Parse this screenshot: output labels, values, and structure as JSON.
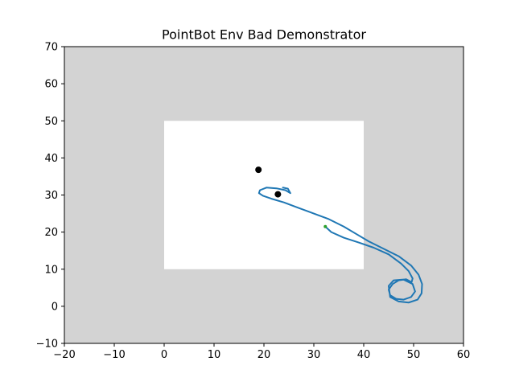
{
  "chart_data": {
    "type": "line",
    "title": "PointBot Env Bad Demonstrator",
    "xlabel": "",
    "ylabel": "",
    "xlim": [
      -20,
      60
    ],
    "ylim": [
      -10,
      70
    ],
    "xticks": [
      -20,
      -10,
      0,
      10,
      20,
      30,
      40,
      50,
      60
    ],
    "yticks": [
      -10,
      0,
      10,
      20,
      30,
      40,
      50,
      60,
      70
    ],
    "grid": false,
    "colors": {
      "background_region": "#d3d3d3",
      "free_region": "#ffffff",
      "trajectory": "#1f77b4",
      "start_point": "#2ca02c",
      "goal_points": "#000000"
    },
    "free_region_rect": {
      "x0": 0,
      "x1": 40,
      "y0": 10,
      "y1": 50
    },
    "start_point": {
      "x": 32.3,
      "y": 21.5
    },
    "goal_points": [
      {
        "x": 18.9,
        "y": 36.8
      },
      {
        "x": 22.8,
        "y": 30.2
      }
    ],
    "series": [
      {
        "x": [
          32.3,
          33.5,
          36.0,
          39.0,
          42.0,
          45.0,
          47.5,
          49.0,
          49.8,
          49.6,
          48.5,
          47.0,
          45.8,
          45.0,
          45.3,
          46.5,
          48.0,
          49.5,
          50.3,
          49.8,
          48.0,
          46.0,
          45.0,
          45.3,
          47.0,
          49.0,
          50.8,
          51.6,
          51.7,
          51.0,
          49.5,
          47.0,
          44.0,
          41.0,
          38.5,
          36.0,
          33.0,
          30.0,
          27.0,
          24.0,
          21.5,
          19.8,
          19.0,
          19.2,
          20.5,
          22.5,
          24.3,
          25.3,
          24.8,
          23.8
        ],
        "y": [
          21.5,
          20.0,
          18.5,
          17.2,
          15.8,
          14.0,
          11.5,
          9.5,
          7.5,
          6.5,
          7.3,
          7.0,
          6.0,
          4.5,
          3.0,
          2.0,
          1.8,
          2.5,
          4.0,
          6.0,
          7.2,
          7.0,
          5.5,
          2.5,
          1.3,
          1.0,
          1.8,
          3.5,
          6.0,
          8.5,
          11.0,
          13.5,
          15.5,
          17.5,
          19.5,
          21.5,
          23.5,
          25.0,
          26.5,
          28.0,
          29.0,
          29.8,
          30.5,
          31.3,
          32.0,
          31.8,
          31.3,
          30.5,
          31.7,
          32.0
        ]
      }
    ]
  }
}
